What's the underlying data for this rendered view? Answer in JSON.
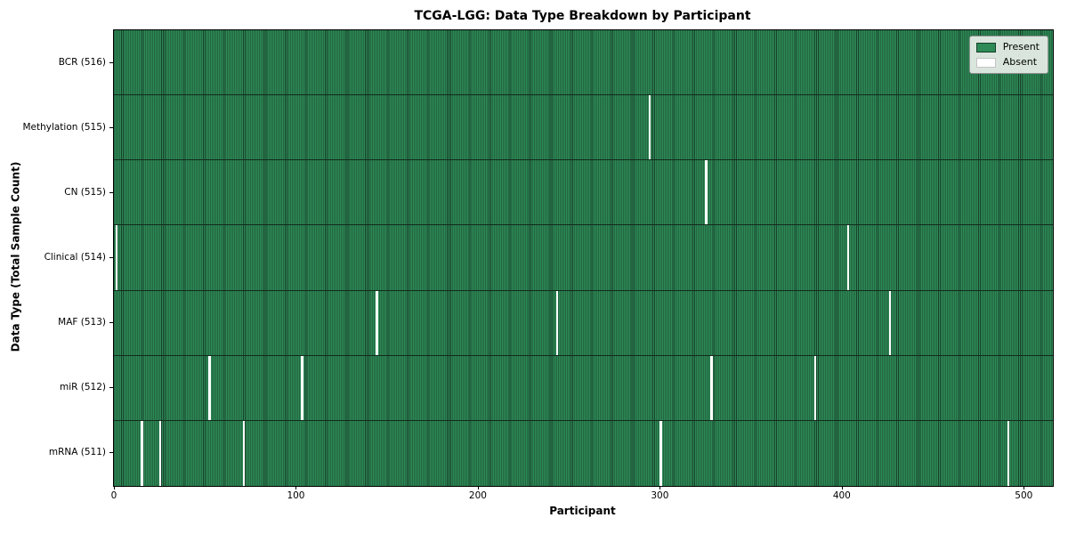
{
  "chart_data": {
    "type": "heatmap",
    "title": "TCGA-LGG: Data Type Breakdown by Participant",
    "xlabel": "Participant",
    "ylabel": "Data Type (Total Sample Count)",
    "n_participants": 516,
    "x_ticks": [
      0,
      100,
      200,
      300,
      400,
      500
    ],
    "x_range": [
      -0.5,
      515.5
    ],
    "grid": false,
    "legend_position": "upper right",
    "legend": [
      {
        "label": "Present",
        "color": "#2e8b57"
      },
      {
        "label": "Absent",
        "color": "#ffffff"
      }
    ],
    "colors": {
      "present": "#2e8b57",
      "absent": "#ffffff",
      "bar_edge": "#173f2a",
      "row_separator": "#122b1c",
      "axis": "#000000",
      "legend_bg": "#e9efe9"
    },
    "rows": [
      {
        "label": "BCR (516)",
        "data_type": "BCR",
        "present_count": 516,
        "absent_participants": []
      },
      {
        "label": "Methylation (515)",
        "data_type": "Methylation",
        "present_count": 515,
        "absent_participants": [
          294
        ]
      },
      {
        "label": "CN (515)",
        "data_type": "CN",
        "present_count": 515,
        "absent_participants": [
          325
        ]
      },
      {
        "label": "Clinical (514)",
        "data_type": "Clinical",
        "present_count": 514,
        "absent_participants": [
          1,
          403
        ]
      },
      {
        "label": "MAF (513)",
        "data_type": "MAF",
        "present_count": 513,
        "absent_participants": [
          144,
          243,
          426
        ]
      },
      {
        "label": "miR (512)",
        "data_type": "miR",
        "present_count": 512,
        "absent_participants": [
          52,
          103,
          328,
          385
        ]
      },
      {
        "label": "mRNA (511)",
        "data_type": "mRNA",
        "present_count": 511,
        "absent_participants": [
          15,
          25,
          71,
          300,
          491
        ]
      }
    ]
  }
}
